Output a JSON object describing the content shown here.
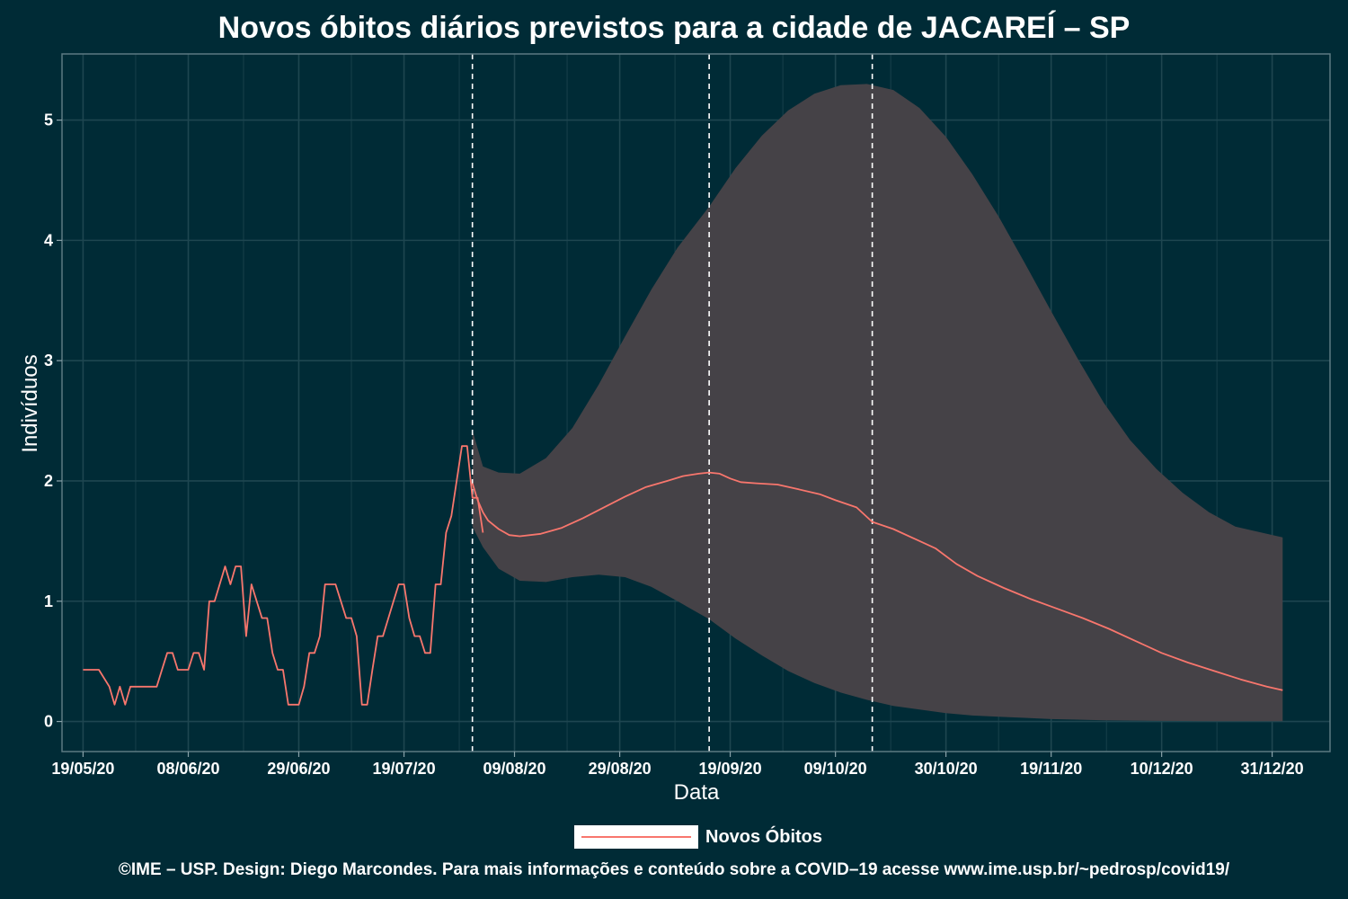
{
  "title": "Novos óbitos diários previstos para a cidade de JACAREÍ – SP",
  "footer": "©IME – USP. Design: Diego Marcondes. Para mais informações e conteúdo sobre a COVID–19 acesse www.ime.usp.br/~pedrosp/covid19/",
  "legend": {
    "label": "Novos Óbitos"
  },
  "colors": {
    "background": "#002b36",
    "line": "#f8766d",
    "band": "#454247",
    "vline": "#ffffff",
    "grid": "#1e4650",
    "text": "#ffffff"
  },
  "chart_data": {
    "type": "line",
    "title": "Novos óbitos diários previstos para a cidade de JACAREÍ – SP",
    "xlabel": "Data",
    "ylabel": "Indivíduos",
    "x_type": "date",
    "xlim": [
      "2020-05-15",
      "2021-01-11"
    ],
    "ylim": [
      -0.25,
      5.55
    ],
    "yticks": [
      0,
      1,
      2,
      3,
      4,
      5
    ],
    "xticks": [
      "2020-05-19",
      "2020-06-08",
      "2020-06-29",
      "2020-07-19",
      "2020-08-09",
      "2020-08-29",
      "2020-09-19",
      "2020-10-09",
      "2020-10-30",
      "2020-11-19",
      "2020-12-10",
      "2020-12-31"
    ],
    "xtick_labels": [
      "19/05/20",
      "08/06/20",
      "29/06/20",
      "19/07/20",
      "09/08/20",
      "29/08/20",
      "19/09/20",
      "09/10/20",
      "30/10/20",
      "19/11/20",
      "10/12/20",
      "31/12/20"
    ],
    "vlines": [
      "2020-08-01",
      "2020-09-15",
      "2020-10-16"
    ],
    "legend_position": "bottom",
    "grid": true,
    "series": [
      {
        "name": "Novos Óbitos",
        "color": "#f8766d",
        "points": [
          [
            "2020-05-19",
            0.43
          ],
          [
            "2020-05-22",
            0.43
          ],
          [
            "2020-05-24",
            0.29
          ],
          [
            "2020-05-25",
            0.14
          ],
          [
            "2020-05-26",
            0.29
          ],
          [
            "2020-05-27",
            0.14
          ],
          [
            "2020-05-28",
            0.29
          ],
          [
            "2020-05-31",
            0.29
          ],
          [
            "2020-06-01",
            0.29
          ],
          [
            "2020-06-02",
            0.29
          ],
          [
            "2020-06-03",
            0.43
          ],
          [
            "2020-06-04",
            0.57
          ],
          [
            "2020-06-05",
            0.57
          ],
          [
            "2020-06-06",
            0.43
          ],
          [
            "2020-06-08",
            0.43
          ],
          [
            "2020-06-09",
            0.57
          ],
          [
            "2020-06-10",
            0.57
          ],
          [
            "2020-06-11",
            0.43
          ],
          [
            "2020-06-12",
            1.0
          ],
          [
            "2020-06-13",
            1.0
          ],
          [
            "2020-06-15",
            1.29
          ],
          [
            "2020-06-16",
            1.14
          ],
          [
            "2020-06-17",
            1.29
          ],
          [
            "2020-06-18",
            1.29
          ],
          [
            "2020-06-19",
            0.71
          ],
          [
            "2020-06-20",
            1.14
          ],
          [
            "2020-06-22",
            0.86
          ],
          [
            "2020-06-23",
            0.86
          ],
          [
            "2020-06-24",
            0.57
          ],
          [
            "2020-06-25",
            0.43
          ],
          [
            "2020-06-26",
            0.43
          ],
          [
            "2020-06-27",
            0.14
          ],
          [
            "2020-06-29",
            0.14
          ],
          [
            "2020-06-30",
            0.29
          ],
          [
            "2020-07-01",
            0.57
          ],
          [
            "2020-07-02",
            0.57
          ],
          [
            "2020-07-03",
            0.71
          ],
          [
            "2020-07-04",
            1.14
          ],
          [
            "2020-07-06",
            1.14
          ],
          [
            "2020-07-08",
            0.86
          ],
          [
            "2020-07-09",
            0.86
          ],
          [
            "2020-07-10",
            0.71
          ],
          [
            "2020-07-11",
            0.14
          ],
          [
            "2020-07-12",
            0.14
          ],
          [
            "2020-07-13",
            0.43
          ],
          [
            "2020-07-14",
            0.71
          ],
          [
            "2020-07-15",
            0.71
          ],
          [
            "2020-07-17",
            1.0
          ],
          [
            "2020-07-18",
            1.14
          ],
          [
            "2020-07-19",
            1.14
          ],
          [
            "2020-07-20",
            0.86
          ],
          [
            "2020-07-21",
            0.71
          ],
          [
            "2020-07-22",
            0.71
          ],
          [
            "2020-07-23",
            0.57
          ],
          [
            "2020-07-24",
            0.57
          ],
          [
            "2020-07-25",
            1.14
          ],
          [
            "2020-07-26",
            1.14
          ],
          [
            "2020-07-27",
            1.57
          ],
          [
            "2020-07-28",
            1.71
          ],
          [
            "2020-07-30",
            2.29
          ],
          [
            "2020-07-31",
            2.29
          ],
          [
            "2020-08-01",
            1.86
          ],
          [
            "2020-08-02",
            1.86
          ],
          [
            "2020-08-03",
            1.57
          ]
        ]
      },
      {
        "name": "",
        "color": "#f8766d",
        "points": [
          [
            "2020-08-01",
            1.98
          ],
          [
            "2020-08-02",
            1.84
          ],
          [
            "2020-08-03",
            1.74
          ],
          [
            "2020-08-04",
            1.67
          ],
          [
            "2020-08-06",
            1.6
          ],
          [
            "2020-08-08",
            1.55
          ],
          [
            "2020-08-10",
            1.54
          ],
          [
            "2020-08-14",
            1.56
          ],
          [
            "2020-08-18",
            1.61
          ],
          [
            "2020-08-22",
            1.69
          ],
          [
            "2020-08-26",
            1.78
          ],
          [
            "2020-08-30",
            1.87
          ],
          [
            "2020-09-03",
            1.95
          ],
          [
            "2020-09-07",
            2.0
          ],
          [
            "2020-09-10",
            2.04
          ],
          [
            "2020-09-13",
            2.06
          ],
          [
            "2020-09-15",
            2.07
          ],
          [
            "2020-09-17",
            2.06
          ],
          [
            "2020-09-19",
            2.02
          ],
          [
            "2020-09-21",
            1.99
          ],
          [
            "2020-09-24",
            1.98
          ],
          [
            "2020-09-28",
            1.97
          ],
          [
            "2020-10-02",
            1.93
          ],
          [
            "2020-10-06",
            1.89
          ],
          [
            "2020-10-09",
            1.84
          ],
          [
            "2020-10-13",
            1.78
          ],
          [
            "2020-10-16",
            1.66
          ],
          [
            "2020-10-20",
            1.6
          ],
          [
            "2020-10-24",
            1.52
          ],
          [
            "2020-10-28",
            1.44
          ],
          [
            "2020-11-01",
            1.31
          ],
          [
            "2020-11-05",
            1.21
          ],
          [
            "2020-11-10",
            1.11
          ],
          [
            "2020-11-15",
            1.02
          ],
          [
            "2020-11-20",
            0.94
          ],
          [
            "2020-11-25",
            0.86
          ],
          [
            "2020-11-30",
            0.77
          ],
          [
            "2020-12-05",
            0.67
          ],
          [
            "2020-12-10",
            0.57
          ],
          [
            "2020-12-15",
            0.49
          ],
          [
            "2020-12-20",
            0.42
          ],
          [
            "2020-12-25",
            0.35
          ],
          [
            "2020-12-30",
            0.29
          ],
          [
            "2021-01-02",
            0.26
          ]
        ]
      }
    ],
    "ribbon": {
      "color": "#454247",
      "upper": [
        [
          "2020-08-01",
          2.42
        ],
        [
          "2020-08-03",
          2.12
        ],
        [
          "2020-08-06",
          2.07
        ],
        [
          "2020-08-10",
          2.06
        ],
        [
          "2020-08-15",
          2.19
        ],
        [
          "2020-08-20",
          2.44
        ],
        [
          "2020-08-25",
          2.8
        ],
        [
          "2020-08-30",
          3.2
        ],
        [
          "2020-09-04",
          3.59
        ],
        [
          "2020-09-09",
          3.94
        ],
        [
          "2020-09-15",
          4.28
        ],
        [
          "2020-09-20",
          4.6
        ],
        [
          "2020-09-25",
          4.87
        ],
        [
          "2020-09-30",
          5.08
        ],
        [
          "2020-10-05",
          5.22
        ],
        [
          "2020-10-10",
          5.29
        ],
        [
          "2020-10-15",
          5.3
        ],
        [
          "2020-10-20",
          5.25
        ],
        [
          "2020-10-25",
          5.1
        ],
        [
          "2020-10-30",
          4.86
        ],
        [
          "2020-11-04",
          4.55
        ],
        [
          "2020-11-09",
          4.2
        ],
        [
          "2020-11-14",
          3.81
        ],
        [
          "2020-11-19",
          3.41
        ],
        [
          "2020-11-24",
          3.02
        ],
        [
          "2020-11-29",
          2.65
        ],
        [
          "2020-12-04",
          2.34
        ],
        [
          "2020-12-09",
          2.1
        ],
        [
          "2020-12-14",
          1.9
        ],
        [
          "2020-12-19",
          1.74
        ],
        [
          "2020-12-24",
          1.62
        ],
        [
          "2021-01-02",
          1.53
        ]
      ],
      "lower": [
        [
          "2020-08-01",
          1.62
        ],
        [
          "2020-08-03",
          1.45
        ],
        [
          "2020-08-06",
          1.27
        ],
        [
          "2020-08-10",
          1.17
        ],
        [
          "2020-08-15",
          1.16
        ],
        [
          "2020-08-20",
          1.2
        ],
        [
          "2020-08-25",
          1.22
        ],
        [
          "2020-08-30",
          1.2
        ],
        [
          "2020-09-04",
          1.12
        ],
        [
          "2020-09-09",
          1.0
        ],
        [
          "2020-09-15",
          0.85
        ],
        [
          "2020-09-20",
          0.69
        ],
        [
          "2020-09-25",
          0.55
        ],
        [
          "2020-09-30",
          0.42
        ],
        [
          "2020-10-05",
          0.32
        ],
        [
          "2020-10-10",
          0.24
        ],
        [
          "2020-10-15",
          0.18
        ],
        [
          "2020-10-20",
          0.13
        ],
        [
          "2020-10-25",
          0.1
        ],
        [
          "2020-10-30",
          0.07
        ],
        [
          "2020-11-04",
          0.05
        ],
        [
          "2020-11-09",
          0.04
        ],
        [
          "2020-11-14",
          0.03
        ],
        [
          "2020-11-19",
          0.02
        ],
        [
          "2020-11-24",
          0.015
        ],
        [
          "2020-11-29",
          0.01
        ],
        [
          "2020-12-04",
          0.008
        ],
        [
          "2020-12-09",
          0.005
        ],
        [
          "2020-12-14",
          0.004
        ],
        [
          "2020-12-19",
          0.003
        ],
        [
          "2020-12-24",
          0.002
        ],
        [
          "2021-01-02",
          0.002
        ]
      ]
    }
  }
}
